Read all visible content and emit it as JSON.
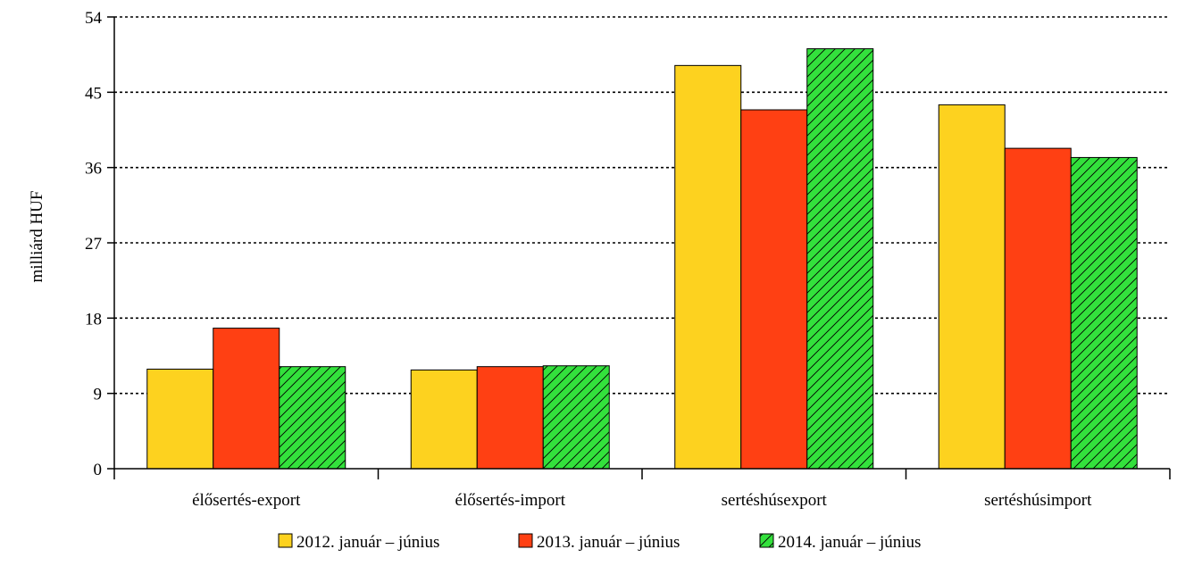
{
  "chart_data": {
    "type": "bar",
    "title": "",
    "xlabel": "",
    "ylabel": "milliárd HUF",
    "ylim": [
      0,
      54
    ],
    "yticks": [
      0,
      9,
      18,
      27,
      36,
      45,
      54
    ],
    "grid": true,
    "legend_position": "bottom",
    "categories": [
      "élősertés-export",
      "élősertés-import",
      "sertéshúsexport",
      "sertéshúsimport"
    ],
    "series": [
      {
        "name": "2012. január – június",
        "color": "#FDD21F",
        "pattern": "solid",
        "values": [
          11.9,
          11.8,
          48.2,
          43.5
        ]
      },
      {
        "name": "2013. január – június",
        "color": "#FF4013",
        "pattern": "solid",
        "values": [
          16.8,
          12.2,
          42.9,
          38.3
        ]
      },
      {
        "name": "2014. január – június",
        "color": "#33E13C",
        "pattern": "hatched",
        "values": [
          12.2,
          12.3,
          50.2,
          37.2
        ]
      }
    ]
  }
}
